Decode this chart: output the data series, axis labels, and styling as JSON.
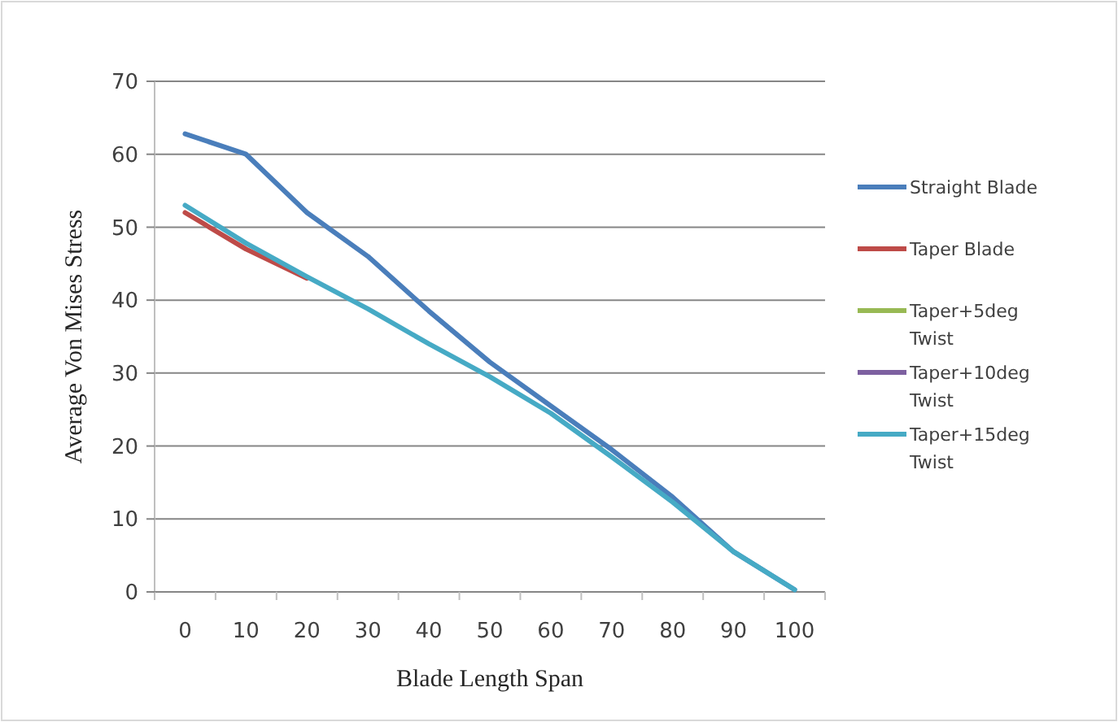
{
  "chart_data": {
    "type": "line",
    "xlabel": "Blade Length Span",
    "ylabel": "Average Von Mises Stress",
    "categories": [
      "0",
      "10",
      "20",
      "30",
      "40",
      "50",
      "60",
      "70",
      "80",
      "90",
      "100"
    ],
    "ylim": [
      0,
      70
    ],
    "yticks": [
      0,
      10,
      20,
      30,
      40,
      50,
      60,
      70
    ],
    "grid": "y",
    "legend": "right",
    "marker": "none",
    "line_style": "solid",
    "series": [
      {
        "name": "Straight Blade",
        "color": "#4a7ebb",
        "values": [
          62.8,
          60,
          52,
          46,
          38.5,
          31.5,
          25.5,
          19.5,
          13,
          5.5,
          0.3
        ]
      },
      {
        "name": "Taper Blade",
        "color": "#be4b48",
        "values": [
          52,
          47,
          43,
          null,
          null,
          null,
          null,
          null,
          null,
          null,
          null
        ]
      },
      {
        "name": "Taper+5deg Twist",
        "color": "#98b954",
        "values": [
          null,
          null,
          null,
          null,
          null,
          null,
          null,
          null,
          null,
          null,
          null
        ]
      },
      {
        "name": "Taper+10deg Twist",
        "color": "#7d60a0",
        "values": [
          null,
          null,
          null,
          null,
          null,
          null,
          null,
          null,
          null,
          null,
          null
        ]
      },
      {
        "name": "Taper+15deg Twist",
        "color": "#46aac5",
        "values": [
          53,
          47.8,
          43.2,
          38.8,
          34,
          29.5,
          24.5,
          18.5,
          12.3,
          5.5,
          0.3
        ]
      }
    ]
  }
}
